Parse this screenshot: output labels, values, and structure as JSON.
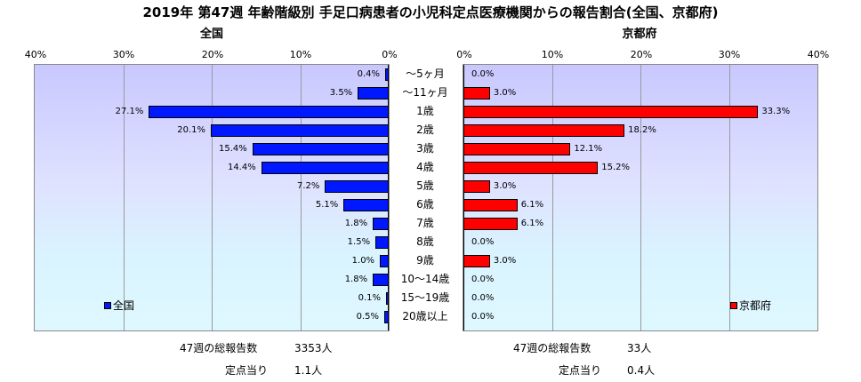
{
  "chart_data": {
    "type": "bar",
    "title": "2019年 第47週 年齢階級別 手足口病患者の小児科定点医療機関からの報告割合(全国、京都府)",
    "categories": [
      "～5ヶ月",
      "～11ヶ月",
      "1歳",
      "2歳",
      "3歳",
      "4歳",
      "5歳",
      "6歳",
      "7歳",
      "8歳",
      "9歳",
      "10～14歳",
      "15～19歳",
      "20歳以上"
    ],
    "xlim": [
      0,
      40
    ],
    "xticks": [
      "0%",
      "10%",
      "20%",
      "30%",
      "40%"
    ],
    "grid": true,
    "series": [
      {
        "name": "全国",
        "heading": "全国",
        "color": "#0018ff",
        "legend_position": "bottom-left",
        "values": [
          0.4,
          3.5,
          27.1,
          20.1,
          15.4,
          14.4,
          7.2,
          5.1,
          1.8,
          1.5,
          1.0,
          1.8,
          0.1,
          0.5
        ],
        "labels": [
          "0.4%",
          "3.5%",
          "27.1%",
          "20.1%",
          "15.4%",
          "14.4%",
          "7.2%",
          "5.1%",
          "1.8%",
          "1.5%",
          "1.0%",
          "1.8%",
          "0.1%",
          "0.5%"
        ]
      },
      {
        "name": "京都府",
        "heading": "京都府",
        "color": "#ff0000",
        "legend_position": "bottom-right",
        "values": [
          0.0,
          3.0,
          33.3,
          18.2,
          12.1,
          15.2,
          3.0,
          6.1,
          6.1,
          0.0,
          3.0,
          0.0,
          0.0,
          0.0
        ],
        "labels": [
          "0.0%",
          "3.0%",
          "33.3%",
          "18.2%",
          "12.1%",
          "15.2%",
          "3.0%",
          "6.1%",
          "6.1%",
          "0.0%",
          "3.0%",
          "0.0%",
          "0.0%",
          "0.0%"
        ]
      }
    ]
  },
  "footer": {
    "national": {
      "total_label": "47週の総報告数",
      "total_value": "3353人",
      "per_label": "定点当り",
      "per_value": "1.1人"
    },
    "kyoto": {
      "total_label": "47週の総報告数",
      "total_value": "33人",
      "per_label": "定点当り",
      "per_value": "0.4人"
    }
  }
}
